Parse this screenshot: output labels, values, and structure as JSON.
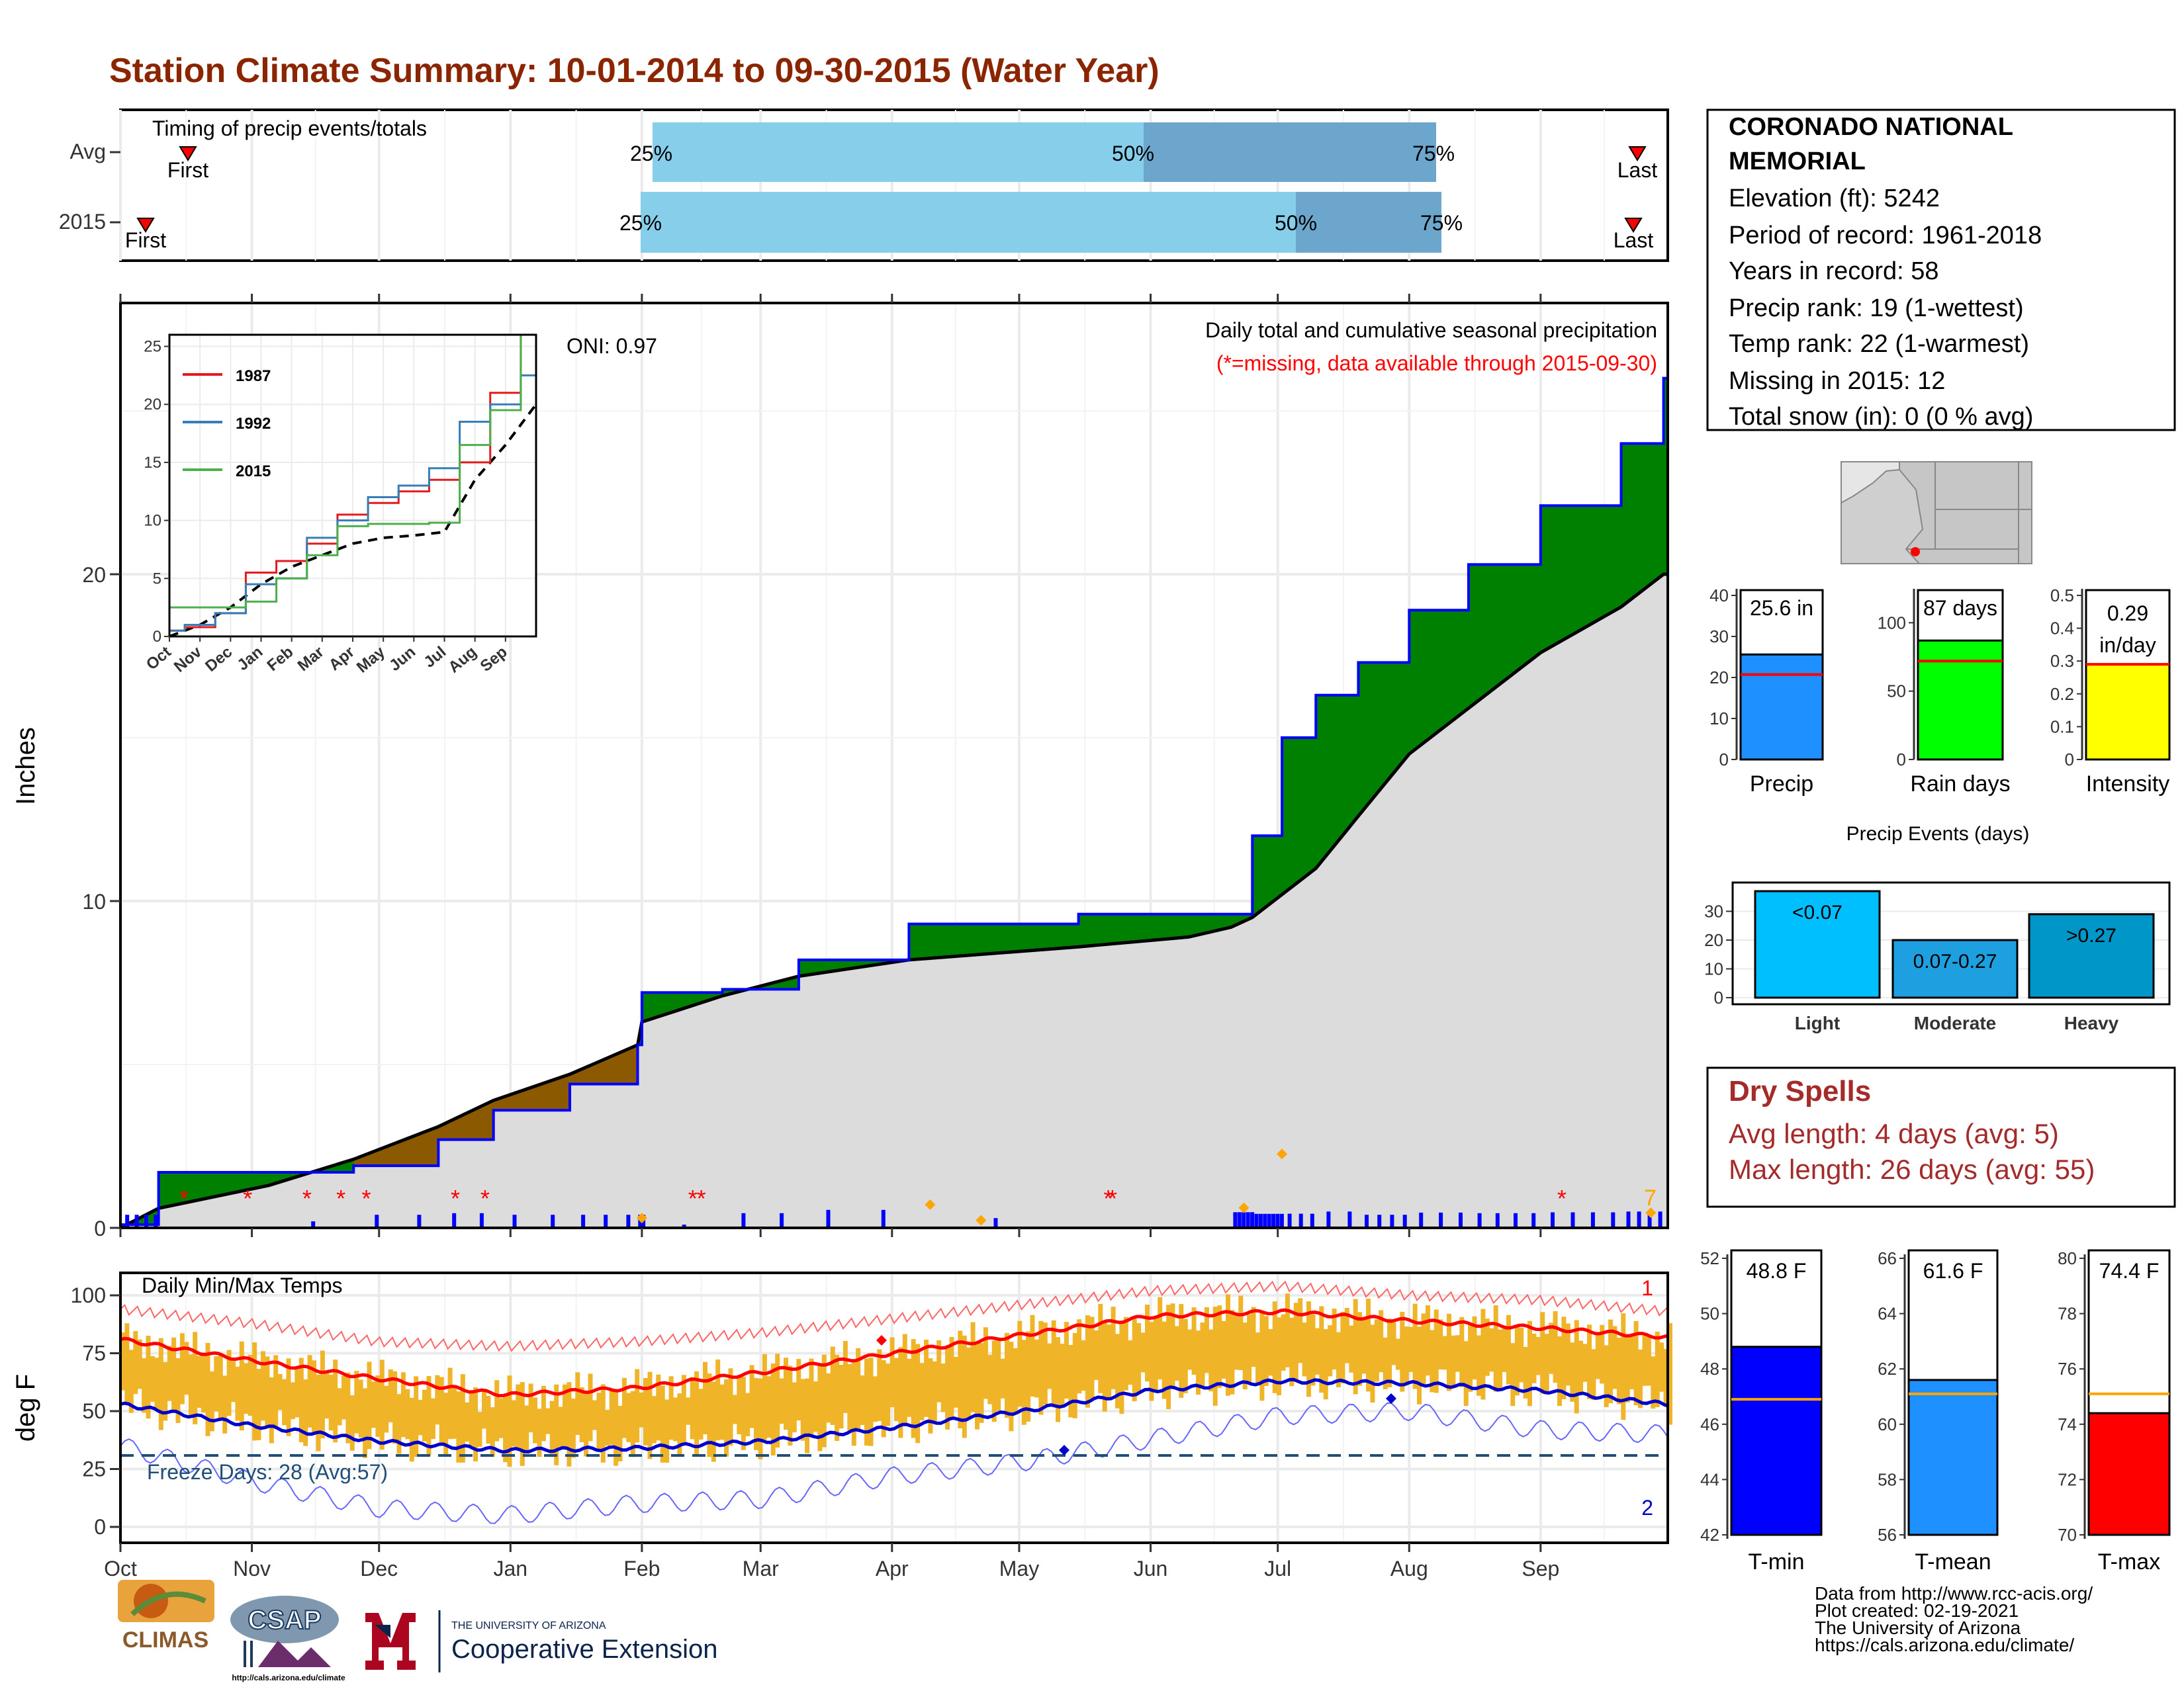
{
  "title": "Station Climate Summary: 10-01-2014 to 09-30-2015 (Water Year)",
  "colors": {
    "title": "#8B2500",
    "light_bar": "#87CEEB",
    "mid_bar": "#6CA6CD",
    "green": "#008000",
    "brown": "#8B5A00",
    "gray_fill": "#DCDCDC",
    "daily_bar": "#0000FF",
    "temp_bar": "#F0B429",
    "max_line": "#FF0000",
    "min_line": "#0000CD",
    "dry_spell": "#A52A2A"
  },
  "timing": {
    "label": "Timing of precip events/totals",
    "rows": [
      {
        "name": "Avg",
        "first_label": "First",
        "last_label": "Last",
        "p25": "25%",
        "p50": "50%",
        "p75": "75%"
      },
      {
        "name": "2015",
        "first_label": "First",
        "last_label": "Last",
        "p25": "25%",
        "p50": "50%",
        "p75": "75%"
      }
    ]
  },
  "station": {
    "name": "CORONADO NATIONAL MEMORIAL",
    "lines": [
      "Elevation (ft): 5242",
      "Period of record: 1961-2018",
      "Years in record: 58",
      "Precip rank: 19 (1-wettest)",
      "Temp rank: 22 (1-warmest)",
      "Missing in 2015: 12",
      "Total snow (in): 0 (0 % avg)"
    ]
  },
  "precip_panel": {
    "ylabel": "Inches",
    "oni": "ONI: 0.97",
    "note1": "Daily total and cumulative seasonal precipitation",
    "note2": "(*=missing, data available through 2015-09-30)",
    "y_ticks": [
      "0",
      "10",
      "20"
    ],
    "corner_label": "7"
  },
  "inset": {
    "legend": [
      "1987",
      "1992",
      "2015"
    ],
    "y_ticks": [
      "0",
      "5",
      "10",
      "15",
      "20",
      "25"
    ],
    "x_ticks": [
      "Oct",
      "Nov",
      "Dec",
      "Jan",
      "Feb",
      "Mar",
      "Apr",
      "May",
      "Jun",
      "Jul",
      "Aug",
      "Sep"
    ]
  },
  "months": [
    "Oct",
    "Nov",
    "Dec",
    "Jan",
    "Feb",
    "Mar",
    "Apr",
    "May",
    "Jun",
    "Jul",
    "Aug",
    "Sep"
  ],
  "temp_panel": {
    "label": "Daily Min/Max Temps",
    "ylabel": "deg F",
    "freeze": "Freeze Days: 28 (Avg:57)",
    "y_ticks": [
      "0",
      "25",
      "50",
      "75",
      "100"
    ],
    "corner_top": "1",
    "corner_bottom": "2"
  },
  "dry_spells": {
    "title": "Dry Spells",
    "avg": "Avg length: 4 days (avg: 5)",
    "max": "Max length: 26 days (avg: 55)"
  },
  "events_title": "Precip Events (days)",
  "credits": [
    "Data from http://www.rcc-acis.org/",
    "Plot created: 02-19-2021",
    "The University of Arizona",
    "https://cals.arizona.edu/climate/"
  ],
  "logos": {
    "climas": "CLIMAS",
    "csap": "CSAP",
    "csap_url": "http://cals.arizona.edu/climate",
    "ua_small": "THE UNIVERSITY OF ARIZONA",
    "ua_big": "Cooperative Extension"
  },
  "chart_data": [
    {
      "type": "bar",
      "title": "Timing of precip events/totals",
      "categories": [
        "Avg",
        "2015"
      ],
      "series": [
        {
          "name": "First",
          "values": [
            "2014-10-20",
            "2014-10-06"
          ]
        },
        {
          "name": "25%",
          "values": [
            "2015-01-31",
            "2015-01-29"
          ]
        },
        {
          "name": "50%",
          "values": [
            "2015-07-10",
            "2015-08-14"
          ]
        },
        {
          "name": "75%",
          "values": [
            "2015-08-24",
            "2015-08-26"
          ]
        },
        {
          "name": "Last",
          "values": [
            "2015-09-25",
            "2015-09-25"
          ]
        }
      ]
    },
    {
      "type": "area",
      "title": "Daily total and cumulative seasonal precipitation",
      "ylabel": "Inches",
      "ylim": [
        0,
        26
      ],
      "x": [
        "2014-10-01",
        "2014-10-10",
        "2014-11-05",
        "2014-11-25",
        "2014-12-15",
        "2014-12-28",
        "2015-01-15",
        "2015-01-31",
        "2015-02-01",
        "2015-02-20",
        "2015-03-10",
        "2015-04-05",
        "2015-05-15",
        "2015-06-10",
        "2015-06-20",
        "2015-06-25",
        "2015-07-02",
        "2015-07-10",
        "2015-07-20",
        "2015-08-01",
        "2015-08-15",
        "2015-09-01",
        "2015-09-20",
        "2015-09-30"
      ],
      "series": [
        {
          "name": "2015",
          "values": [
            0.1,
            1.7,
            1.7,
            1.9,
            2.7,
            3.6,
            4.4,
            5.6,
            7.2,
            7.3,
            8.2,
            9.3,
            9.6,
            9.6,
            9.6,
            12.0,
            15.0,
            16.3,
            17.3,
            18.9,
            20.3,
            22.1,
            24.0,
            26.0
          ]
        },
        {
          "name": "Avg",
          "values": [
            0.0,
            0.6,
            1.3,
            2.1,
            3.1,
            3.9,
            4.7,
            5.6,
            6.3,
            7.1,
            7.7,
            8.2,
            8.6,
            8.9,
            9.2,
            9.5,
            10.2,
            11.0,
            12.6,
            14.5,
            15.9,
            17.6,
            19.0,
            20.0
          ]
        }
      ]
    },
    {
      "type": "line",
      "ylim": [
        0,
        26
      ],
      "x": [
        "Oct",
        "Nov",
        "Dec",
        "Jan",
        "Feb",
        "Mar",
        "Apr",
        "May",
        "Jun",
        "Jul",
        "Aug",
        "Sep",
        "End"
      ],
      "series": [
        {
          "name": "1987",
          "values": [
            0.5,
            0.8,
            2.0,
            5.5,
            6.5,
            8.0,
            10.5,
            11.5,
            12.5,
            13.5,
            15.0,
            21.0,
            26.0
          ]
        },
        {
          "name": "1992",
          "values": [
            0.5,
            1.0,
            2.0,
            4.5,
            5.0,
            8.5,
            10.0,
            12.0,
            13.0,
            14.5,
            18.5,
            20.0,
            22.5
          ]
        },
        {
          "name": "2015",
          "values": [
            2.5,
            2.5,
            2.5,
            3.0,
            5.0,
            7.0,
            9.5,
            9.7,
            9.7,
            9.8,
            16.5,
            19.5,
            26.0
          ]
        },
        {
          "name": "Avg",
          "values": [
            0.0,
            1.0,
            2.5,
            4.5,
            6.0,
            7.0,
            8.0,
            8.5,
            8.7,
            9.0,
            13.5,
            16.5,
            20.0
          ]
        }
      ]
    },
    {
      "type": "bar",
      "categories": [
        "Precip",
        "Rain days",
        "Intensity"
      ],
      "values": [
        25.6,
        87,
        0.29
      ],
      "labels": [
        "25.6 in",
        "87 days",
        "0.29 in/day"
      ],
      "averages": [
        20.7,
        72,
        0.29
      ],
      "ylims": [
        [
          0,
          40
        ],
        [
          0,
          120
        ],
        [
          0,
          0.5
        ]
      ]
    },
    {
      "type": "bar",
      "title": "Precip Events (days)",
      "categories": [
        "Light",
        "Moderate",
        "Heavy"
      ],
      "labels": [
        "<0.07",
        "0.07-0.27",
        ">0.27"
      ],
      "values": [
        37,
        20,
        29
      ],
      "ylim": [
        0,
        40
      ]
    },
    {
      "type": "line",
      "title": "Daily Min/Max Temps",
      "ylabel": "deg F",
      "ylim": [
        0,
        100
      ],
      "x": [
        "Oct",
        "Nov",
        "Dec",
        "Jan",
        "Feb",
        "Mar",
        "Apr",
        "May",
        "Jun",
        "Jul",
        "Aug",
        "Sep",
        "End"
      ],
      "series": [
        {
          "name": "Avg max",
          "values": [
            81,
            72,
            64,
            57,
            60,
            67,
            75,
            83,
            91,
            93,
            89,
            86,
            82
          ]
        },
        {
          "name": "Avg min",
          "values": [
            53,
            44,
            37,
            33,
            34,
            37,
            43,
            50,
            59,
            63,
            62,
            59,
            53
          ]
        },
        {
          "name": "Record max",
          "values": [
            94,
            88,
            80,
            78,
            80,
            84,
            90,
            96,
            102,
            104,
            100,
            98,
            93
          ]
        },
        {
          "name": "Record min",
          "values": [
            35,
            20,
            8,
            5,
            10,
            12,
            22,
            28,
            38,
            48,
            50,
            42,
            40
          ]
        }
      ],
      "freeze_line": 32
    },
    {
      "type": "bar",
      "categories": [
        "T-min",
        "T-mean",
        "T-max"
      ],
      "labels": [
        "48.8 F",
        "61.6 F",
        "74.4 F"
      ],
      "values": [
        48.8,
        61.6,
        74.4
      ],
      "averages": [
        46.9,
        61.1,
        75.1
      ],
      "ylims": [
        [
          42,
          52
        ],
        [
          56,
          66
        ],
        [
          70,
          80
        ]
      ]
    }
  ]
}
